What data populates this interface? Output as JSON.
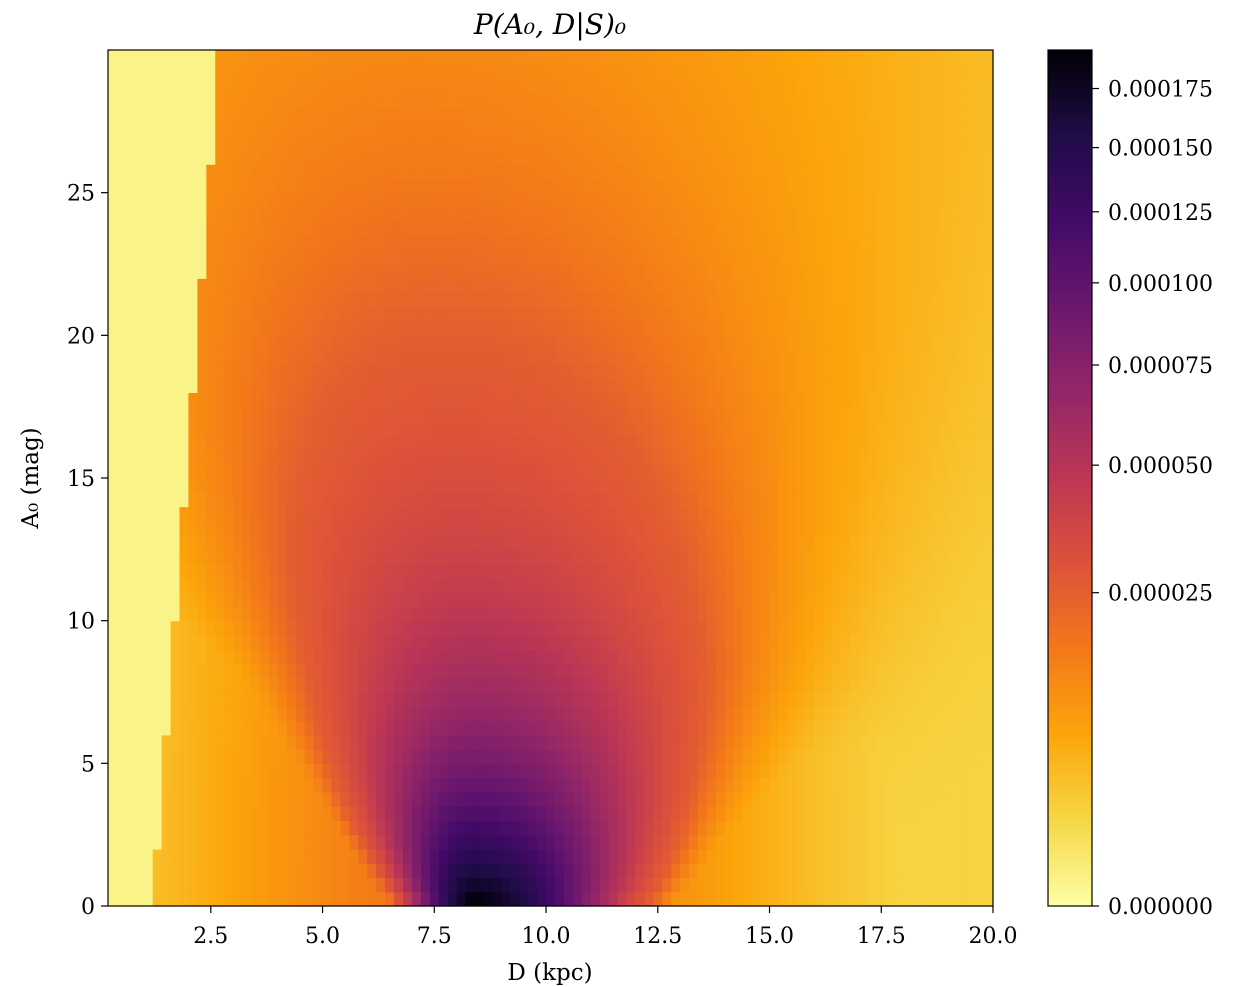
{
  "chart_data": {
    "type": "heatmap",
    "title": "P(A₀, D|S)₀",
    "xlabel": "D (kpc)",
    "ylabel": "A₀ (mag)",
    "xlim": [
      0.2,
      20.0
    ],
    "ylim": [
      0,
      30
    ],
    "x_ticks": [
      2.5,
      5.0,
      7.5,
      10.0,
      12.5,
      15.0,
      17.5,
      20.0
    ],
    "x_tick_labels": [
      "2.5",
      "5.0",
      "7.5",
      "10.0",
      "12.5",
      "15.0",
      "17.5",
      "20.0"
    ],
    "y_ticks": [
      0,
      5,
      10,
      15,
      20,
      25
    ],
    "y_tick_labels": [
      "0",
      "5",
      "10",
      "15",
      "20",
      "25"
    ],
    "colormap": "inferno_r",
    "colorbar": {
      "position": "right",
      "scale": "nonlinear (compressed toward high values)",
      "vmin": 0.0,
      "vmax": 0.000185,
      "ticks": [
        0.0,
        2.5e-05,
        5e-05,
        7.5e-05,
        0.0001,
        0.000125,
        0.00015,
        0.000175
      ],
      "tick_labels": [
        "0.000000",
        "0.000025",
        "0.000050",
        "0.000075",
        "0.000100",
        "0.000125",
        "0.000150",
        "0.000175"
      ],
      "tick_fractions": [
        0.0,
        0.366,
        0.515,
        0.632,
        0.728,
        0.811,
        0.886,
        0.955
      ]
    },
    "peak": {
      "D": 8.4,
      "A0": 0.5,
      "value": 0.000185
    },
    "grid": false,
    "grid_resolution": {
      "nx": 99,
      "ny": 60
    },
    "colors": [
      "#fcffa4",
      "#f6d746",
      "#fca50a",
      "#f37819",
      "#dd513a",
      "#bc3754",
      "#932667",
      "#6a176e",
      "#420a68",
      "#1f0c48",
      "#000004"
    ]
  }
}
